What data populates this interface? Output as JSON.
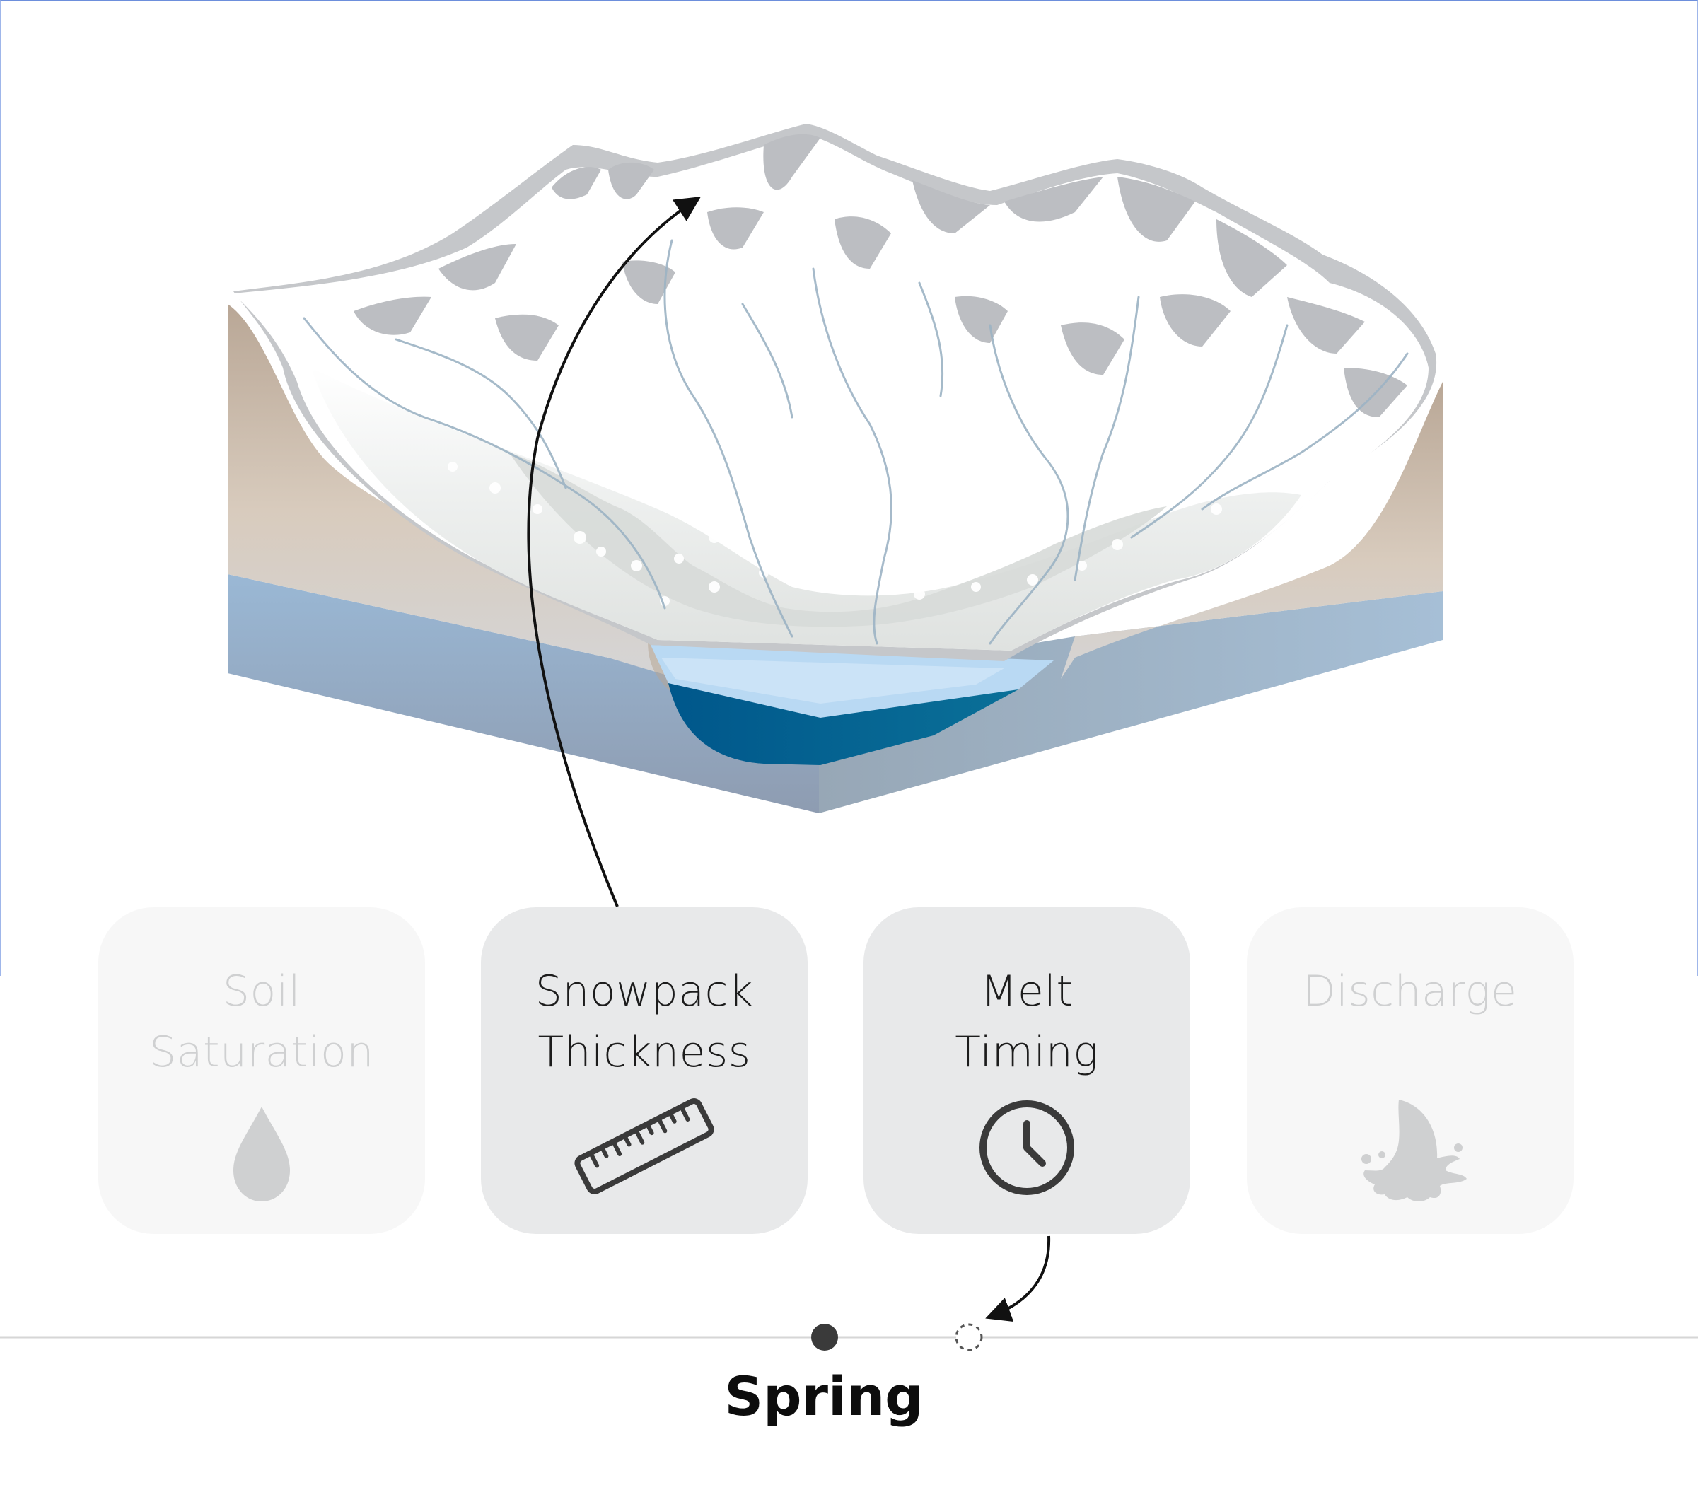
{
  "cards": [
    {
      "line1": "Soil",
      "line2": "Saturation",
      "icon": "water-drop-icon",
      "state": "inactive"
    },
    {
      "line1": "Snowpack",
      "line2": "Thickness",
      "icon": "ruler-icon",
      "state": "active"
    },
    {
      "line1": "Melt",
      "line2": "Timing",
      "icon": "clock-icon",
      "state": "active"
    },
    {
      "line1": "Discharge",
      "line2": "",
      "icon": "water-splash-icon",
      "state": "inactive"
    }
  ],
  "timeline": {
    "season": "Spring"
  },
  "colors": {
    "snow": "#ffffff",
    "rock": "#c3c5c8",
    "soil": "#c2ad9c",
    "groundwater": "#95b1cb",
    "deep_water": "#005e92",
    "melt_ice": "#b9d9f3",
    "card_active": "#e8e9ea",
    "card_inactive": "#f7f7f7",
    "text_active": "#1c1c1c",
    "text_inactive": "#cfd0d1"
  }
}
